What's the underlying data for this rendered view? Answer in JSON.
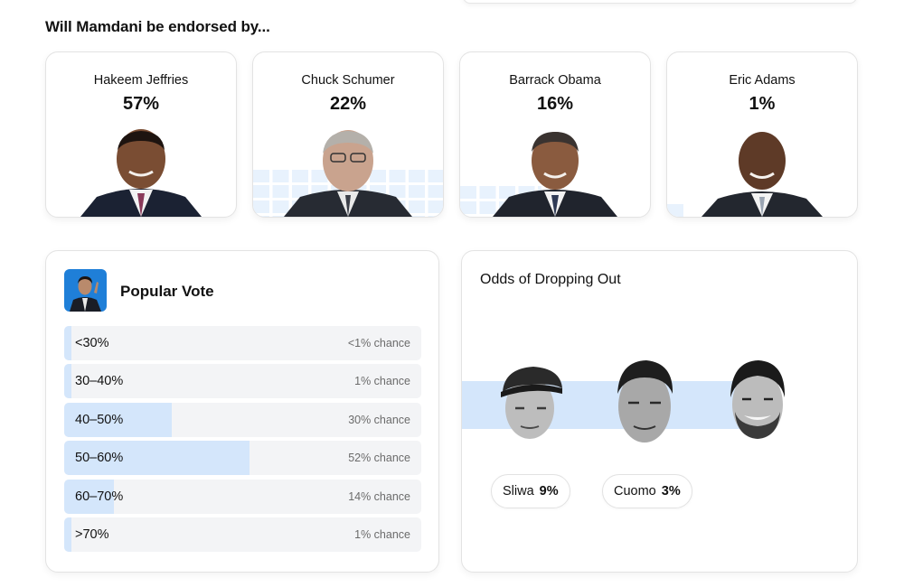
{
  "endorsements": {
    "title": "Will Mamdani be endorsed by...",
    "cards": [
      {
        "name": "Hakeem Jeffries",
        "pct": "57%",
        "portrait_icon": "hakeem-jeffries-portrait"
      },
      {
        "name": "Chuck Schumer",
        "pct": "22%",
        "portrait_icon": "chuck-schumer-portrait"
      },
      {
        "name": "Barrack Obama",
        "pct": "16%",
        "portrait_icon": "barrack-obama-portrait"
      },
      {
        "name": "Eric Adams",
        "pct": "1%",
        "portrait_icon": "eric-adams-portrait"
      }
    ]
  },
  "popular_vote": {
    "title": "Popular Vote",
    "avatar_icon": "mamdani-avatar",
    "rows": [
      {
        "label": "<30%",
        "chance": "<1% chance",
        "level": 0.5
      },
      {
        "label": "30–40%",
        "chance": "1% chance",
        "level": 1
      },
      {
        "label": "40–50%",
        "chance": "30% chance",
        "level": 30
      },
      {
        "label": "50–60%",
        "chance": "52% chance",
        "level": 52
      },
      {
        "label": "60–70%",
        "chance": "14% chance",
        "level": 14
      },
      {
        "label": ">70%",
        "chance": "1% chance",
        "level": 1
      }
    ]
  },
  "odds": {
    "title": "Odds of Dropping Out",
    "candidates": [
      {
        "name": "Sliwa",
        "pct": "9%",
        "face_icon": "sliwa-face"
      },
      {
        "name": "Cuomo",
        "pct": "3%",
        "face_icon": "cuomo-face"
      },
      {
        "name": "",
        "pct": "",
        "face_icon": "mamdani-face"
      }
    ]
  },
  "colors": {
    "accent_fill": "#d4e6fb",
    "grid_fill": "#e8f2fd",
    "row_bg": "#f3f4f6"
  }
}
